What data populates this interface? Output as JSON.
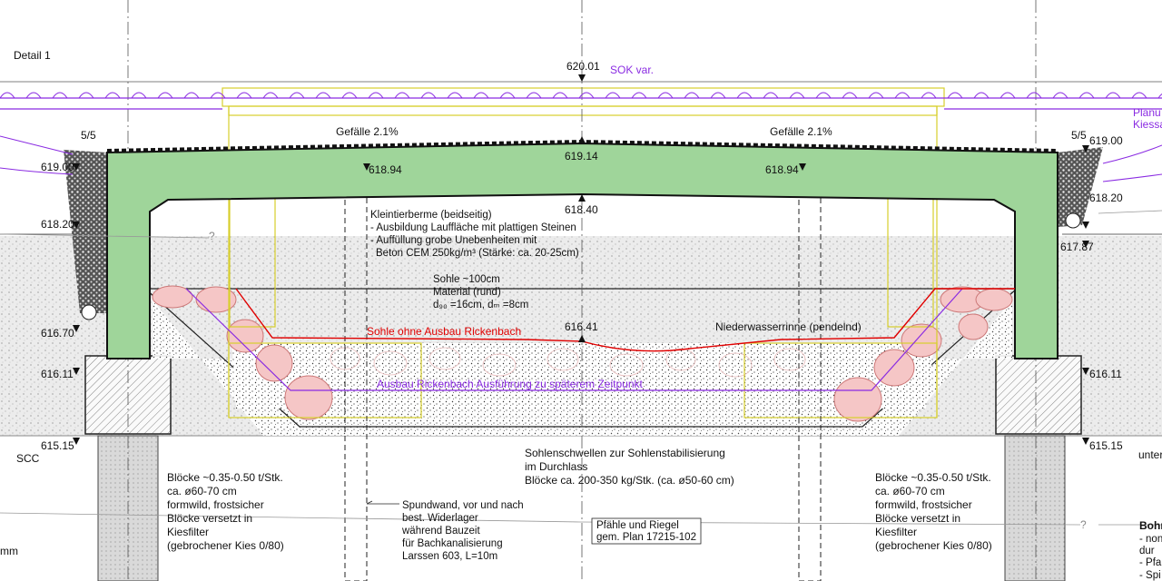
{
  "title": "Detail 1",
  "colors": {
    "concrete": "#9fd59a",
    "purple": "#8a2be2",
    "red": "#e00000",
    "yellowline": "#d7cf2c",
    "stone_fill": "#f5c6c6",
    "gravel_bg": "#e9e9e9"
  },
  "elevations": {
    "top": "620.01",
    "deck_center": "619.14",
    "deck_left": "618.94",
    "deck_right": "618.94",
    "soffit": "618.40",
    "left_619": "619.00",
    "right_619": "619.00",
    "left_618": "618.20",
    "right_618": "618.20",
    "right_617": "617.87",
    "left_616": "616.70",
    "channel": "616.41",
    "left_61611": "616.11",
    "right_61611": "616.11",
    "left_615": "615.15",
    "right_615": "615.15"
  },
  "slopes": {
    "left": "Gefälle 2.1%",
    "right": "Gefälle 2.1%",
    "left_ratio": "5/5",
    "right_ratio": "5/5"
  },
  "labels": {
    "sok": "SOK var.",
    "planum": "Planu",
    "kiessa": "Kiessa",
    "scc": "SCC",
    "mm": "mm",
    "unter": "unter",
    "qmark_left": "?",
    "qmark_right": "?",
    "sohle_ohne": "Sohle ohne Ausbau Rickenbach",
    "ausbau": "Ausbau Rickenbach Ausführung zu späterem Zeitpunkt",
    "niederwasser": "Niederwasserrinne (pendelnd)",
    "pfaehle": [
      "Pfähle und Riegel",
      "gem. Plan 17215-102"
    ]
  },
  "notes": {
    "kleintier": [
      "Kleintierberme (beidseitig)",
      "- Ausbildung Lauffläche mit plattigen Steinen",
      "- Auffüllung grobe Unebenheiten mit",
      "Beton CEM 250kg/m³ (Stärke: ca. 20-25cm)"
    ],
    "sohle": [
      "Sohle ~100cm",
      "Material (rund)",
      "d₉₀ =16cm, dₘ =8cm"
    ],
    "schwellen": [
      "Sohlenschwellen zur Sohlenstabilisierung",
      "im Durchlass",
      "Blöcke ca. 200-350 kg/Stk. (ca. ø50-60 cm)"
    ],
    "bloecke_left": [
      "Blöcke ~0.35-0.50 t/Stk.",
      "ca. ø60-70 cm",
      "formwild, frostsicher",
      "Blöcke versetzt in",
      "Kiesfilter",
      "(gebrochener Kies 0/80)"
    ],
    "bloecke_right": [
      "Blöcke ~0.35-0.50 t/Stk.",
      "ca. ø60-70 cm",
      "formwild, frostsicher",
      "Blöcke versetzt in",
      "Kiesfilter",
      "(gebrochener Kies 0/80)"
    ],
    "spundwand": [
      "Spundwand, vor und nach",
      "best. Widerlager",
      "während Bauzeit",
      "für Bachkanalisierung",
      "Larssen 603, L=10m"
    ],
    "bohr": [
      "Bohr",
      "- non",
      "  dur",
      "- Pfa",
      "- Spi"
    ]
  }
}
